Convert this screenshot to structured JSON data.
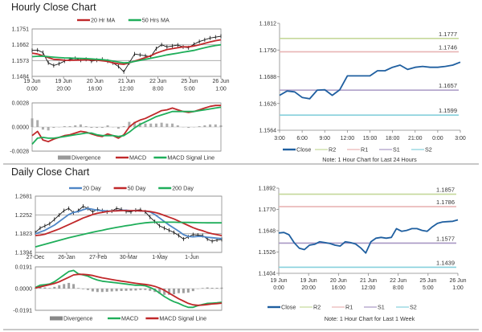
{
  "sections": {
    "hourly_title": "Hourly Close Chart",
    "daily_title": "Daily Close Chart"
  },
  "chart_data": [
    {
      "id": "hourly_price",
      "type": "line",
      "ylim": [
        1.1484,
        1.1751
      ],
      "yticks": [
        "1.1751",
        "1.1662",
        "1.1573",
        "1.1484"
      ],
      "xticks": [
        [
          "19 Jun",
          "0:00"
        ],
        [
          "19 Jun",
          "20:00"
        ],
        [
          "20 Jun",
          "16:00"
        ],
        [
          "21 Jun",
          "12:00"
        ],
        [
          "22 Jun",
          "8:00"
        ],
        [
          "25 Jun",
          "5:00"
        ],
        [
          "26 Jun",
          "1:00"
        ]
      ],
      "grid": true,
      "series": [
        {
          "name": "Close",
          "legend": false,
          "color": "#111111",
          "values": [
            1.163,
            1.1632,
            1.1618,
            1.156,
            1.1545,
            1.1555,
            1.157,
            1.158,
            1.1585,
            1.1575,
            1.158,
            1.157,
            1.1575,
            1.158,
            1.157,
            1.156,
            1.154,
            1.151,
            1.156,
            1.161,
            1.1605,
            1.16,
            1.1595,
            1.164,
            1.1662,
            1.165,
            1.1655,
            1.166,
            1.165,
            1.1645,
            1.1665,
            1.168,
            1.169,
            1.17,
            1.1705,
            1.171
          ]
        },
        {
          "name": "20 Hr MA",
          "legend": true,
          "color": "#c0282a",
          "values": [
            1.1615,
            1.161,
            1.16,
            1.159,
            1.158,
            1.1578,
            1.1575,
            1.1574,
            1.1575,
            1.1576,
            1.1577,
            1.1576,
            1.1575,
            1.1572,
            1.1568,
            1.156,
            1.1555,
            1.1552,
            1.156,
            1.157,
            1.158,
            1.159,
            1.16,
            1.1615,
            1.1625,
            1.1635,
            1.164,
            1.1645,
            1.165,
            1.165,
            1.1655,
            1.1662,
            1.167,
            1.1678,
            1.1685,
            1.169
          ]
        },
        {
          "name": "50 Hrs MA",
          "legend": true,
          "color": "#1fae5a",
          "values": [
            1.1595,
            1.1597,
            1.1598,
            1.1595,
            1.1592,
            1.159,
            1.1588,
            1.1587,
            1.1586,
            1.1585,
            1.1584,
            1.1582,
            1.158,
            1.1578,
            1.1575,
            1.157,
            1.1565,
            1.156,
            1.1562,
            1.1568,
            1.1574,
            1.158,
            1.1586,
            1.1592,
            1.1598,
            1.1605,
            1.161,
            1.1615,
            1.162,
            1.1625,
            1.163,
            1.1638,
            1.1645,
            1.1652,
            1.1658,
            1.1662
          ]
        }
      ]
    },
    {
      "id": "hourly_macd",
      "type": "line",
      "ylim": [
        -0.0028,
        0.0028
      ],
      "yticks": [
        "0.0028",
        "0.0000",
        "-0.0028"
      ],
      "grid": true,
      "divergence": {
        "name": "Divergence",
        "color": "#999999"
      },
      "series": [
        {
          "name": "MACD",
          "legend": true,
          "color": "#c0282a",
          "values": [
            -0.001,
            -0.0005,
            -0.0015,
            -0.0017,
            -0.0014,
            -0.0012,
            -0.001,
            -0.0009,
            -0.0007,
            -0.0005,
            -0.0006,
            -0.0008,
            -0.001,
            -0.0011,
            -0.0008,
            -0.001,
            -0.0013,
            -0.0009,
            0.0,
            0.0005,
            0.0008,
            0.001,
            0.0013,
            0.0016,
            0.0019,
            0.002,
            0.0022,
            0.002,
            0.0018,
            0.0017,
            0.0018,
            0.002,
            0.0022,
            0.0024,
            0.0025,
            0.0025
          ]
        },
        {
          "name": "MACD Signal Line",
          "legend": true,
          "color": "#1fae5a",
          "values": [
            -0.002,
            -0.0013,
            -0.0012,
            -0.0013,
            -0.0013,
            -0.0012,
            -0.0011,
            -0.001,
            -0.0009,
            -0.0008,
            -0.0007,
            -0.0007,
            -0.0009,
            -0.001,
            -0.001,
            -0.001,
            -0.0011,
            -0.001,
            -0.0006,
            -0.0001,
            0.0003,
            0.0006,
            0.0009,
            0.0012,
            0.0014,
            0.0016,
            0.0018,
            0.0018,
            0.0018,
            0.0018,
            0.0018,
            0.0019,
            0.002,
            0.0021,
            0.0022,
            0.0023
          ]
        }
      ]
    },
    {
      "id": "hourly_pivots",
      "type": "line",
      "ylim": [
        1.1564,
        1.1812
      ],
      "yticks": [
        "1.1812",
        "1.1750",
        "1.1688",
        "1.1626",
        "1.1564"
      ],
      "xticks": [
        [
          "3:00"
        ],
        [
          "6:00"
        ],
        [
          "9:00"
        ],
        [
          "12:00"
        ],
        [
          "15:00"
        ],
        [
          "18:00"
        ],
        [
          "21:00"
        ],
        [
          "0:00"
        ],
        [
          "3:00"
        ]
      ],
      "grid": false,
      "series": [
        {
          "name": "Close",
          "legend": true,
          "color": "#1f5fa0",
          "values": [
            1.1645,
            1.1655,
            1.1653,
            1.164,
            1.1637,
            1.1657,
            1.1658,
            1.1645,
            1.1658,
            1.169,
            1.169,
            1.169,
            1.169,
            1.1702,
            1.1702,
            1.171,
            1.1715,
            1.1705,
            1.171,
            1.1712,
            1.171,
            1.171,
            1.1712,
            1.1715,
            1.1722
          ]
        }
      ],
      "levels": [
        {
          "name": "R2",
          "value": 1.1777,
          "label": "1.1777",
          "color": "#c5d89a"
        },
        {
          "name": "R1",
          "value": 1.1746,
          "label": "1.1746",
          "color": "#e8b4b4"
        },
        {
          "name": "S1",
          "value": 1.1657,
          "label": "1.1657",
          "color": "#a898c4"
        },
        {
          "name": "S2",
          "value": 1.1599,
          "label": "1.1599",
          "color": "#86d0dc"
        }
      ],
      "note": "Note: 1 Hour Chart for Last 24 Hours"
    },
    {
      "id": "daily_price",
      "type": "line",
      "ylim": [
        1.1394,
        1.2681
      ],
      "yticks": [
        "1.2681",
        "1.2252",
        "1.1823",
        "1.1394"
      ],
      "xticks": [
        [
          "27-Dec"
        ],
        [
          "26-Jan"
        ],
        [
          "27-Feb"
        ],
        [
          "30-Mar"
        ],
        [
          "1-May"
        ],
        [
          "1-Jun"
        ]
      ],
      "grid": true,
      "series": [
        {
          "name": "Close",
          "legend": false,
          "color": "#111111",
          "values": [
            1.185,
            1.195,
            1.2,
            1.205,
            1.215,
            1.225,
            1.235,
            1.24,
            1.23,
            1.235,
            1.245,
            1.24,
            1.232,
            1.238,
            1.235,
            1.232,
            1.234,
            1.24,
            1.238,
            1.233,
            1.232,
            1.236,
            1.237,
            1.232,
            1.22,
            1.21,
            1.2,
            1.195,
            1.19,
            1.185,
            1.178,
            1.17,
            1.175,
            1.18,
            1.179,
            1.178,
            1.17,
            1.165,
            1.168,
            1.169
          ]
        },
        {
          "name": "20 Day",
          "legend": true,
          "color": "#4f86c6",
          "values": [
            1.182,
            1.186,
            1.19,
            1.196,
            1.202,
            1.21,
            1.218,
            1.226,
            1.231,
            1.233,
            1.237,
            1.24,
            1.238,
            1.236,
            1.235,
            1.234,
            1.234,
            1.235,
            1.236,
            1.236,
            1.235,
            1.235,
            1.234,
            1.234,
            1.232,
            1.226,
            1.218,
            1.21,
            1.202,
            1.195,
            1.188,
            1.18,
            1.176,
            1.175,
            1.176,
            1.176,
            1.174,
            1.173,
            1.172,
            1.171
          ]
        },
        {
          "name": "50 Day",
          "legend": true,
          "color": "#c0282a",
          "values": [
            1.178,
            1.179,
            1.181,
            1.185,
            1.189,
            1.193,
            1.198,
            1.203,
            1.208,
            1.213,
            1.218,
            1.222,
            1.226,
            1.229,
            1.231,
            1.233,
            1.234,
            1.2345,
            1.235,
            1.235,
            1.235,
            1.2348,
            1.2345,
            1.234,
            1.233,
            1.231,
            1.228,
            1.224,
            1.22,
            1.216,
            1.211,
            1.206,
            1.201,
            1.196,
            1.192,
            1.189,
            1.185,
            1.182,
            1.18,
            1.178
          ]
        },
        {
          "name": "200 Day",
          "legend": true,
          "color": "#1fae5a",
          "values": [
            1.152,
            1.155,
            1.158,
            1.161,
            1.164,
            1.167,
            1.17,
            1.173,
            1.1755,
            1.178,
            1.1805,
            1.183,
            1.1855,
            1.188,
            1.19,
            1.1925,
            1.1945,
            1.1965,
            1.1985,
            1.2005,
            1.202,
            1.204,
            1.2055,
            1.207,
            1.208,
            1.2085,
            1.2085,
            1.2085,
            1.2085,
            1.2085,
            1.2082,
            1.208,
            1.208,
            1.2078,
            1.2075,
            1.2073,
            1.207,
            1.207,
            1.207,
            1.207
          ]
        }
      ]
    },
    {
      "id": "daily_macd",
      "type": "line",
      "ylim": [
        -0.0191,
        0.0191
      ],
      "yticks": [
        "0.0191",
        "0.0000",
        "-0.0191"
      ],
      "grid": true,
      "divergence": {
        "name": "Divergence",
        "color": "#888888"
      },
      "series": [
        {
          "name": "MACD",
          "legend": true,
          "color": "#1fae5a",
          "values": [
            0.001,
            0.003,
            0.0035,
            0.004,
            0.006,
            0.009,
            0.012,
            0.015,
            0.016,
            0.013,
            0.012,
            0.011,
            0.009,
            0.0075,
            0.0065,
            0.006,
            0.0055,
            0.005,
            0.0045,
            0.004,
            0.0035,
            0.003,
            0.003,
            0.0025,
            0.001,
            -0.001,
            -0.004,
            -0.007,
            -0.0095,
            -0.0115,
            -0.013,
            -0.015,
            -0.0165,
            -0.0165,
            -0.015,
            -0.014,
            -0.013,
            -0.0128,
            -0.0125,
            -0.012
          ]
        },
        {
          "name": "MACD Signal Line",
          "legend": true,
          "color": "#c0282a",
          "values": [
            0.0005,
            0.0015,
            0.0025,
            0.0035,
            0.0045,
            0.006,
            0.008,
            0.01,
            0.012,
            0.0125,
            0.0125,
            0.0122,
            0.0115,
            0.0105,
            0.0095,
            0.0088,
            0.008,
            0.0073,
            0.0066,
            0.006,
            0.0053,
            0.0047,
            0.0042,
            0.0037,
            0.003,
            0.002,
            0.0005,
            -0.0015,
            -0.004,
            -0.0065,
            -0.009,
            -0.011,
            -0.013,
            -0.0143,
            -0.0147,
            -0.0145,
            -0.014,
            -0.0135,
            -0.0132,
            -0.0128
          ]
        }
      ]
    },
    {
      "id": "weekly_pivots",
      "type": "line",
      "ylim": [
        1.1404,
        1.1892
      ],
      "yticks": [
        "1.1892",
        "1.1770",
        "1.1648",
        "1.1526",
        "1.1404"
      ],
      "xticks": [
        [
          "19 Jun",
          "0:00"
        ],
        [
          "19 Jun",
          "20:00"
        ],
        [
          "20 Jun",
          "16:00"
        ],
        [
          "21 Jun",
          "12:00"
        ],
        [
          "22 Jun",
          "8:00"
        ],
        [
          "25 Jun",
          "5:00"
        ],
        [
          "26 Jun",
          "1:00"
        ]
      ],
      "grid": false,
      "series": [
        {
          "name": "Close",
          "legend": true,
          "color": "#1f5fa0",
          "values": [
            1.1635,
            1.1638,
            1.1625,
            1.158,
            1.1548,
            1.154,
            1.1565,
            1.157,
            1.1585,
            1.158,
            1.1575,
            1.1565,
            1.156,
            1.1585,
            1.158,
            1.1572,
            1.155,
            1.152,
            1.1585,
            1.1605,
            1.161,
            1.1605,
            1.161,
            1.166,
            1.1645,
            1.165,
            1.166,
            1.166,
            1.165,
            1.1645,
            1.167,
            1.169,
            1.1698,
            1.17,
            1.1702,
            1.171
          ]
        }
      ],
      "levels": [
        {
          "name": "R2",
          "value": 1.1857,
          "label": "1.1857",
          "color": "#c5d89a"
        },
        {
          "name": "R1",
          "value": 1.1786,
          "label": "1.1786",
          "color": "#e8b4b4"
        },
        {
          "name": "S1",
          "value": 1.1577,
          "label": "1.1577",
          "color": "#a898c4"
        },
        {
          "name": "S2",
          "value": 1.1439,
          "label": "1.1439",
          "color": "#86d0dc"
        }
      ],
      "note": "Note: 1 Hour Chart for Last 1 Week"
    }
  ]
}
